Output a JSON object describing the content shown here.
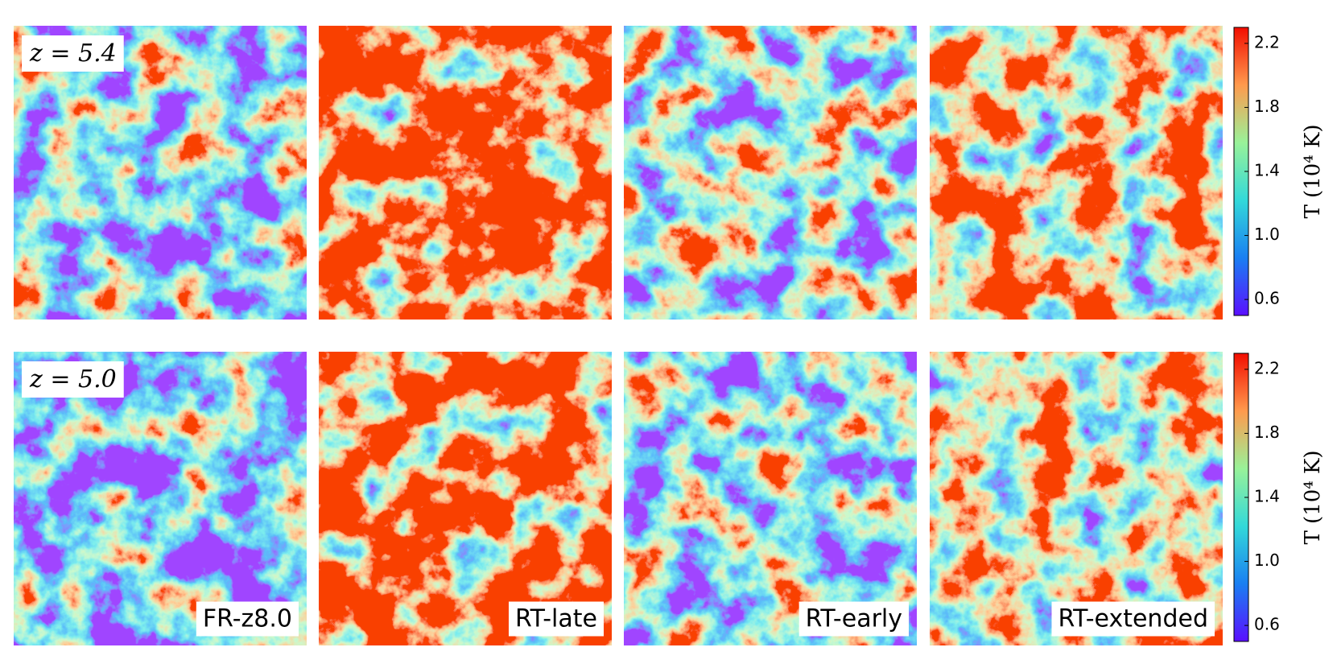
{
  "chart_data": [
    {
      "type": "map-row",
      "annotation": "z = 5.4",
      "colormap": [
        "#5a0fff",
        "#1a7ff2",
        "#33d9d9",
        "#99f299",
        "#ff9a4d",
        "#f20d00"
      ],
      "colorbar": {
        "label": "T (10⁴ K)",
        "ylim": [
          0.5,
          2.3
        ],
        "yticks": [
          0.6,
          {
            "value": 1,
            "label": "1.0"
          },
          1.4,
          1.8,
          2.2
        ]
      }
    },
    {
      "type": "map-row",
      "annotation": "z = 5.0",
      "panels": [
        "FR-z8.0",
        "RT-late",
        "RT-early",
        "RT-extended"
      ],
      "colormap": [
        "#5a0fff",
        "#1a7ff2",
        "#33d9d9",
        "#99f299",
        "#ff9a4d",
        "#f20d00"
      ],
      "colorbar": {
        "label": "T (10⁴ K)",
        "ylim": [
          0.5,
          2.3
        ],
        "yticks": [
          0.6,
          {
            "value": 1,
            "label": "1.0"
          },
          1.4,
          1.8,
          2.2
        ]
      }
    }
  ]
}
